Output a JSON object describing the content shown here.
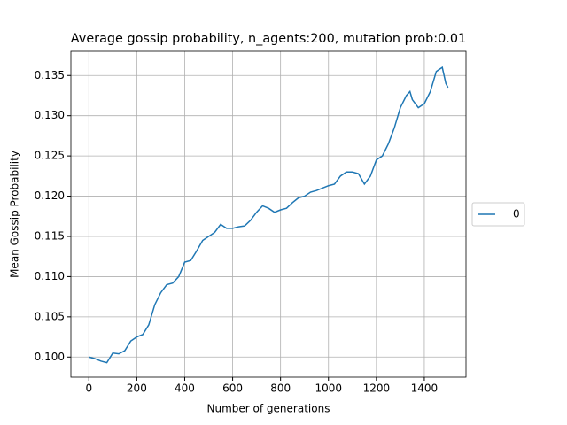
{
  "chart_data": {
    "type": "line",
    "title": "Average gossip probability, n_agents:200, mutation prob:0.01",
    "x_label": "Number of generations",
    "y_label": "Mean Gossip Probability",
    "x": [
      0,
      25,
      50,
      75,
      100,
      125,
      150,
      175,
      200,
      225,
      250,
      275,
      300,
      325,
      350,
      375,
      400,
      425,
      450,
      475,
      500,
      525,
      550,
      575,
      600,
      625,
      650,
      675,
      700,
      725,
      750,
      775,
      800,
      825,
      850,
      875,
      900,
      925,
      950,
      975,
      1000,
      1025,
      1050,
      1075,
      1100,
      1125,
      1150,
      1175,
      1200,
      1225,
      1250,
      1275,
      1300,
      1325,
      1340,
      1350,
      1375,
      1400,
      1425,
      1450,
      1475,
      1490,
      1499
    ],
    "series": [
      {
        "name": "0",
        "color": "#1f77b4",
        "values": [
          0.1,
          0.0998,
          0.0995,
          0.0993,
          0.1005,
          0.1004,
          0.1008,
          0.102,
          0.1025,
          0.1028,
          0.104,
          0.1065,
          0.108,
          0.109,
          0.1092,
          0.11,
          0.1118,
          0.112,
          0.1132,
          0.1145,
          0.115,
          0.1155,
          0.1165,
          0.116,
          0.116,
          0.1162,
          0.1163,
          0.117,
          0.118,
          0.1188,
          0.1185,
          0.118,
          0.1183,
          0.1185,
          0.1192,
          0.1198,
          0.12,
          0.1205,
          0.1207,
          0.121,
          0.1213,
          0.1215,
          0.1225,
          0.123,
          0.123,
          0.1228,
          0.1215,
          0.1225,
          0.1245,
          0.125,
          0.1265,
          0.1285,
          0.131,
          0.1325,
          0.133,
          0.132,
          0.131,
          0.1315,
          0.133,
          0.1355,
          0.136,
          0.134,
          0.1335
        ]
      }
    ],
    "xlim": [
      -75,
      1574
    ],
    "ylim": [
      0.0975,
      0.138
    ],
    "xticks": [
      0,
      200,
      400,
      600,
      800,
      1000,
      1200,
      1400
    ],
    "yticks": [
      {
        "value": 0.1,
        "label": "0.100"
      },
      0.105,
      {
        "value": 0.11,
        "label": "0.110"
      },
      0.115,
      {
        "value": 0.12,
        "label": "0.120"
      },
      0.125,
      {
        "value": 0.13,
        "label": "0.130"
      },
      0.135
    ],
    "grid": true,
    "legend": "right"
  }
}
